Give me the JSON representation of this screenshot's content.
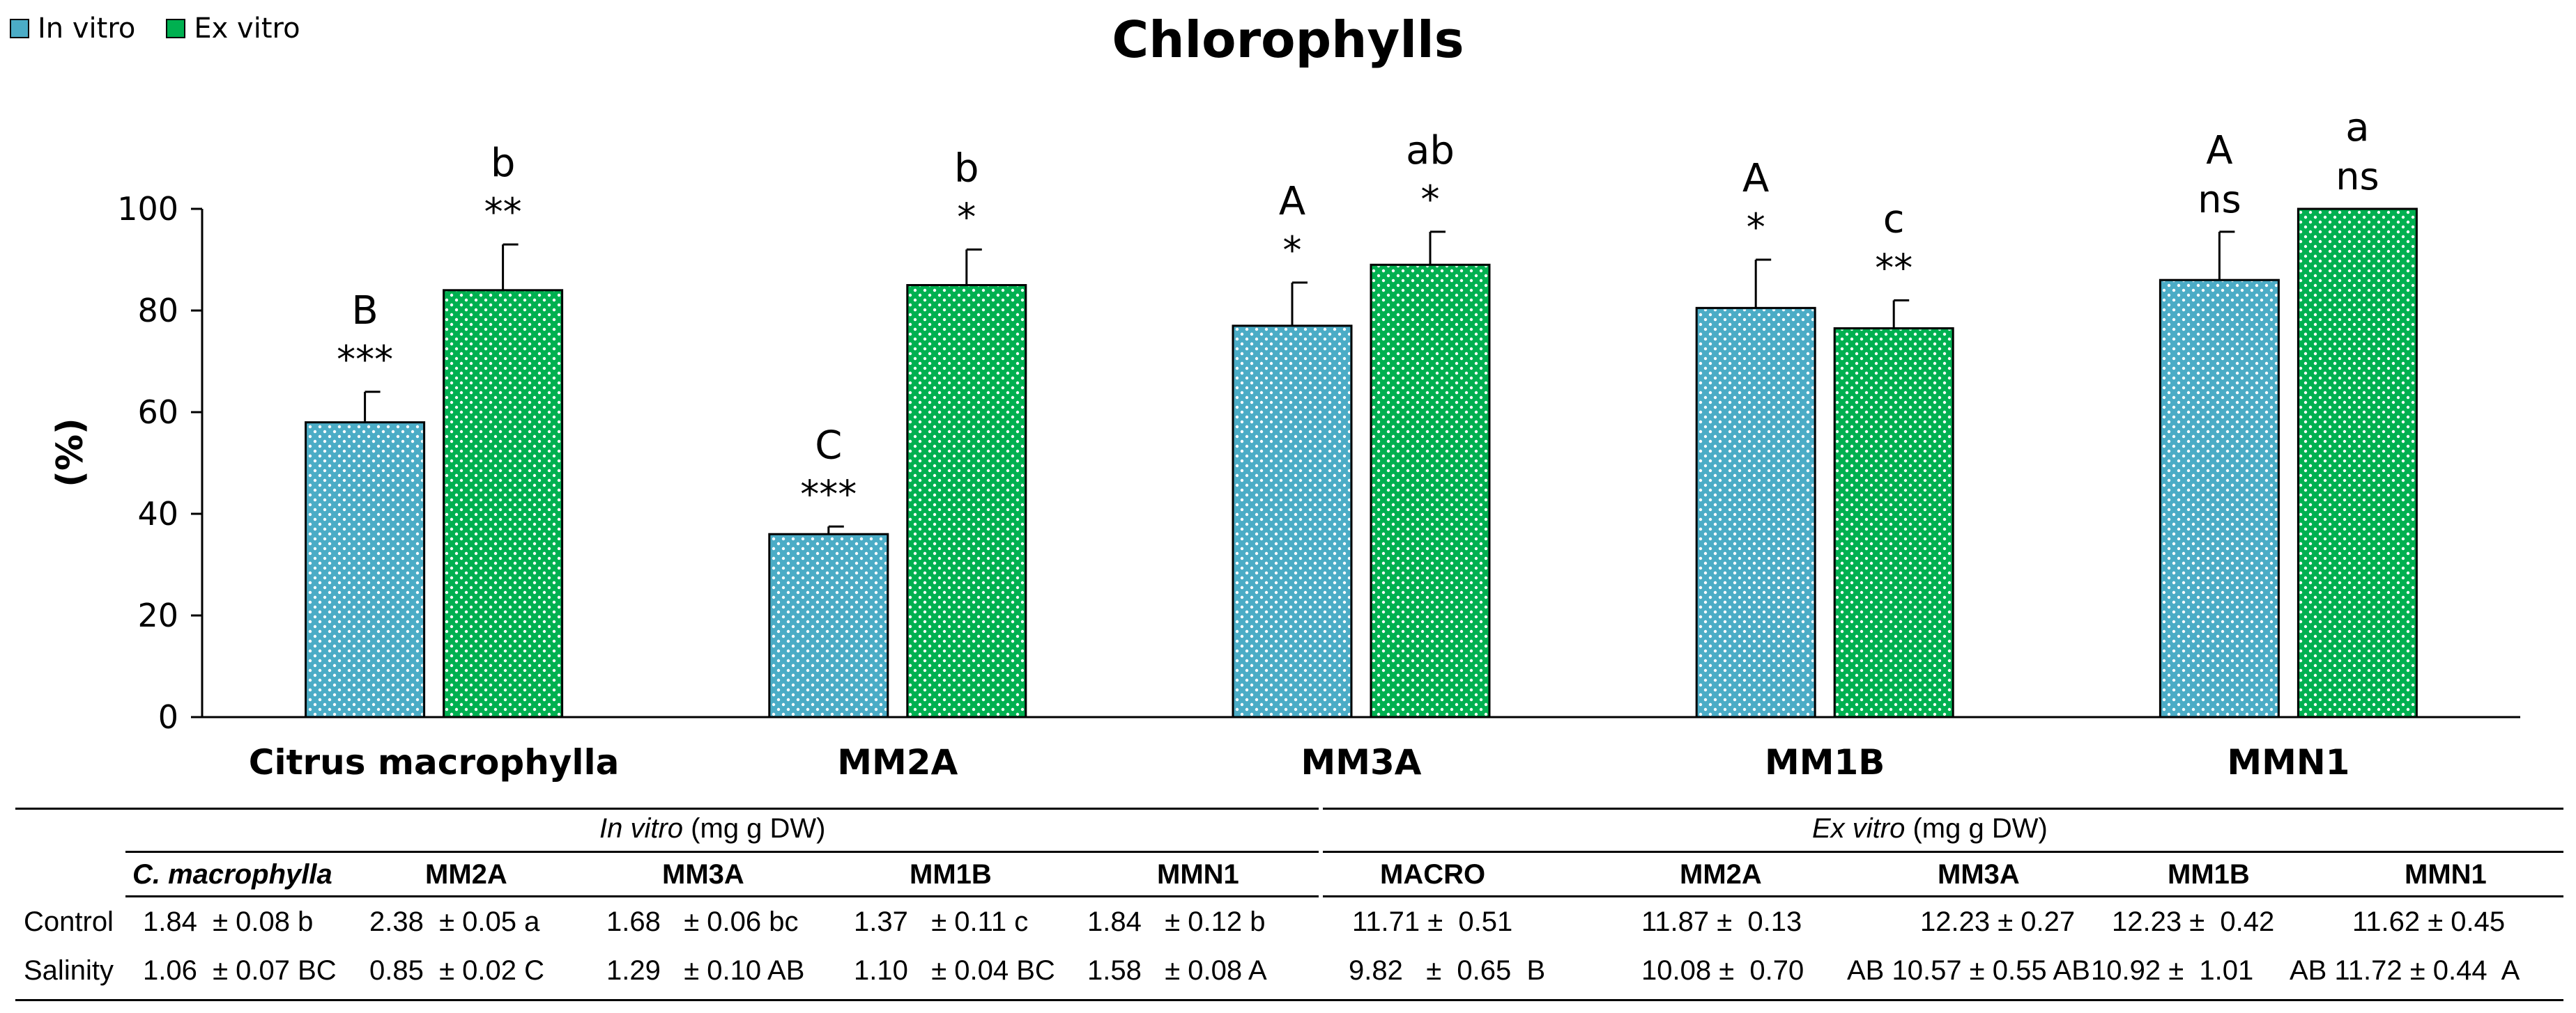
{
  "chart_data": {
    "type": "bar",
    "title": "Chlorophylls",
    "ylabel": "(%)",
    "ylim": [
      0,
      100
    ],
    "yticks": [
      0,
      20,
      40,
      60,
      80,
      100
    ],
    "legend_position": "top-left",
    "categories": [
      "Citrus macrophylla",
      "MM2A",
      "MM3A",
      "MM1B",
      "MMN1"
    ],
    "series": [
      {
        "name": "In vitro",
        "color": "#4bacc6",
        "values": [
          58,
          36,
          77,
          80.5,
          86
        ],
        "errors": [
          6,
          1.5,
          8.5,
          9.5,
          9.5
        ],
        "letters": [
          "B",
          "C",
          "A",
          "A",
          "A"
        ],
        "stars": [
          "***",
          "***",
          "*",
          "*",
          "ns"
        ]
      },
      {
        "name": "Ex vitro",
        "color": "#00b050",
        "values": [
          84,
          85,
          89,
          76.5,
          100
        ],
        "errors": [
          9,
          7,
          6.5,
          5.5,
          0
        ],
        "letters": [
          "b",
          "b",
          "ab",
          "c",
          "a"
        ],
        "stars": [
          "**",
          "*",
          "*",
          "**",
          "ns"
        ]
      }
    ]
  },
  "table": {
    "invitro_header": "In vitro",
    "exvitro_header": "Ex vitro",
    "unit": "(mg g DW)",
    "invitro_cols": [
      "C. macrophylla",
      "MM2A",
      "MM3A",
      "MM1B",
      "MMN1"
    ],
    "exvitro_cols": [
      "MACRO",
      "MM2A",
      "MM3A",
      "MM1B",
      "MMN1"
    ],
    "row_control": "Control",
    "row_salinity": "Salinity",
    "control_in": [
      "1.84  ± 0.08 b",
      "2.38  ± 0.05 a",
      "1.68   ± 0.06 bc",
      "1.37   ± 0.11 c",
      "1.84   ± 0.12 b"
    ],
    "salinity_in": [
      "1.06  ± 0.07 BC",
      "0.85  ± 0.02 C",
      "1.29   ± 0.10 AB",
      "1.10   ± 0.04 BC",
      "1.58   ± 0.08 A"
    ],
    "control_ex": [
      "11.71 ±  0.51",
      "11.87 ±  0.13",
      "12.23 ± 0.27",
      "12.23 ±  0.42",
      "11.62 ± 0.45"
    ],
    "salinity_ex": [
      "9.82   ±  0.65  B",
      "10.08 ±  0.70",
      "AB 10.57 ± 0.55 AB",
      "10.92 ±  1.01",
      "AB 11.72 ± 0.44  A"
    ]
  }
}
